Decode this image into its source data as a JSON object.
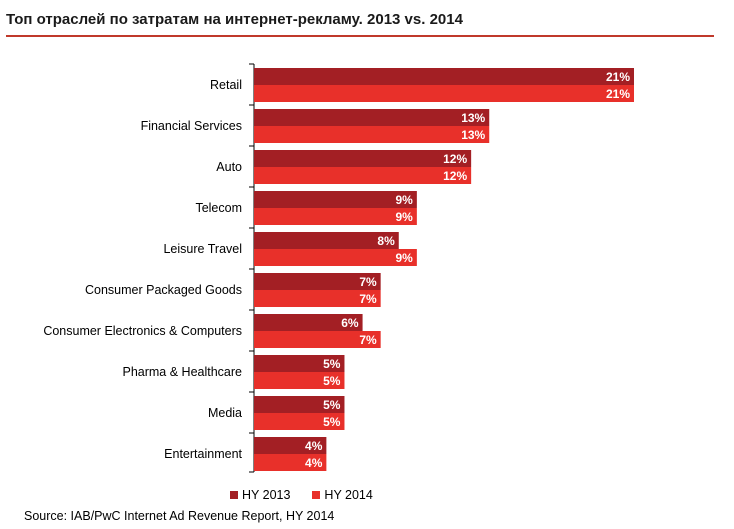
{
  "title": "Топ отраслей по затратам на интернет-рекламу. 2013 vs. 2014",
  "source": "Source: IAB/PwC Internet Ad Revenue Report, HY 2014",
  "colors": {
    "hy2013": "#a31f24",
    "hy2014": "#e8302a",
    "title_rule": "#c0392b"
  },
  "legend": [
    {
      "name": "HY 2013",
      "color": "#a31f24"
    },
    {
      "name": "HY 2014",
      "color": "#e8302a"
    }
  ],
  "chart_data": {
    "type": "bar",
    "orientation": "horizontal",
    "title": "Топ отраслей по затратам на интернет-рекламу. 2013 vs. 2014",
    "categories": [
      "Retail",
      "Financial Services",
      "Auto",
      "Telecom",
      "Leisure Travel",
      "Consumer Packaged Goods",
      "Consumer Electronics & Computers",
      "Pharma & Healthcare",
      "Media",
      "Entertainment"
    ],
    "series": [
      {
        "name": "HY 2013",
        "values": [
          21,
          13,
          12,
          9,
          8,
          7,
          6,
          5,
          5,
          4
        ]
      },
      {
        "name": "HY 2014",
        "values": [
          21,
          13,
          12,
          9,
          9,
          7,
          7,
          5,
          5,
          4
        ]
      }
    ],
    "value_suffix": "%",
    "xlim": [
      0,
      21
    ],
    "grid": false,
    "legend_position": "bottom"
  }
}
